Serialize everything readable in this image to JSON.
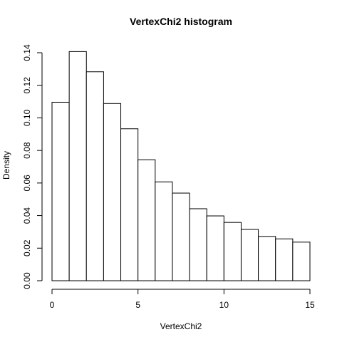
{
  "chart_data": {
    "type": "bar",
    "title": "VertexChi2  histogram",
    "xlabel": "VertexChi2",
    "ylabel": "Density",
    "bins": [
      {
        "from": 0,
        "to": 1,
        "density": 0.1096
      },
      {
        "from": 1,
        "to": 2,
        "density": 0.1407
      },
      {
        "from": 2,
        "to": 3,
        "density": 0.1283
      },
      {
        "from": 3,
        "to": 4,
        "density": 0.1088
      },
      {
        "from": 4,
        "to": 5,
        "density": 0.0933
      },
      {
        "from": 5,
        "to": 6,
        "density": 0.0743
      },
      {
        "from": 6,
        "to": 7,
        "density": 0.0607
      },
      {
        "from": 7,
        "to": 8,
        "density": 0.0538
      },
      {
        "from": 8,
        "to": 9,
        "density": 0.0442
      },
      {
        "from": 9,
        "to": 10,
        "density": 0.0398
      },
      {
        "from": 10,
        "to": 11,
        "density": 0.0358
      },
      {
        "from": 11,
        "to": 12,
        "density": 0.0315
      },
      {
        "from": 12,
        "to": 13,
        "density": 0.0272
      },
      {
        "from": 13,
        "to": 14,
        "density": 0.0257
      },
      {
        "from": 14,
        "to": 15,
        "density": 0.0237
      }
    ],
    "xlim": [
      0,
      15
    ],
    "ylim": [
      0,
      0.14
    ],
    "x_ticks": [
      "0",
      "5",
      "10",
      "15"
    ],
    "x_tick_values": [
      0,
      5,
      10,
      15
    ],
    "y_ticks": [
      "0.00",
      "0.02",
      "0.04",
      "0.06",
      "0.08",
      "0.10",
      "0.12",
      "0.14"
    ],
    "y_tick_values": [
      0,
      0.02,
      0.04,
      0.06,
      0.08,
      0.1,
      0.12,
      0.14
    ],
    "grid": false,
    "colors": {
      "bar_fill": "#ffffff",
      "bar_stroke": "#000000",
      "axis": "#000000"
    }
  }
}
